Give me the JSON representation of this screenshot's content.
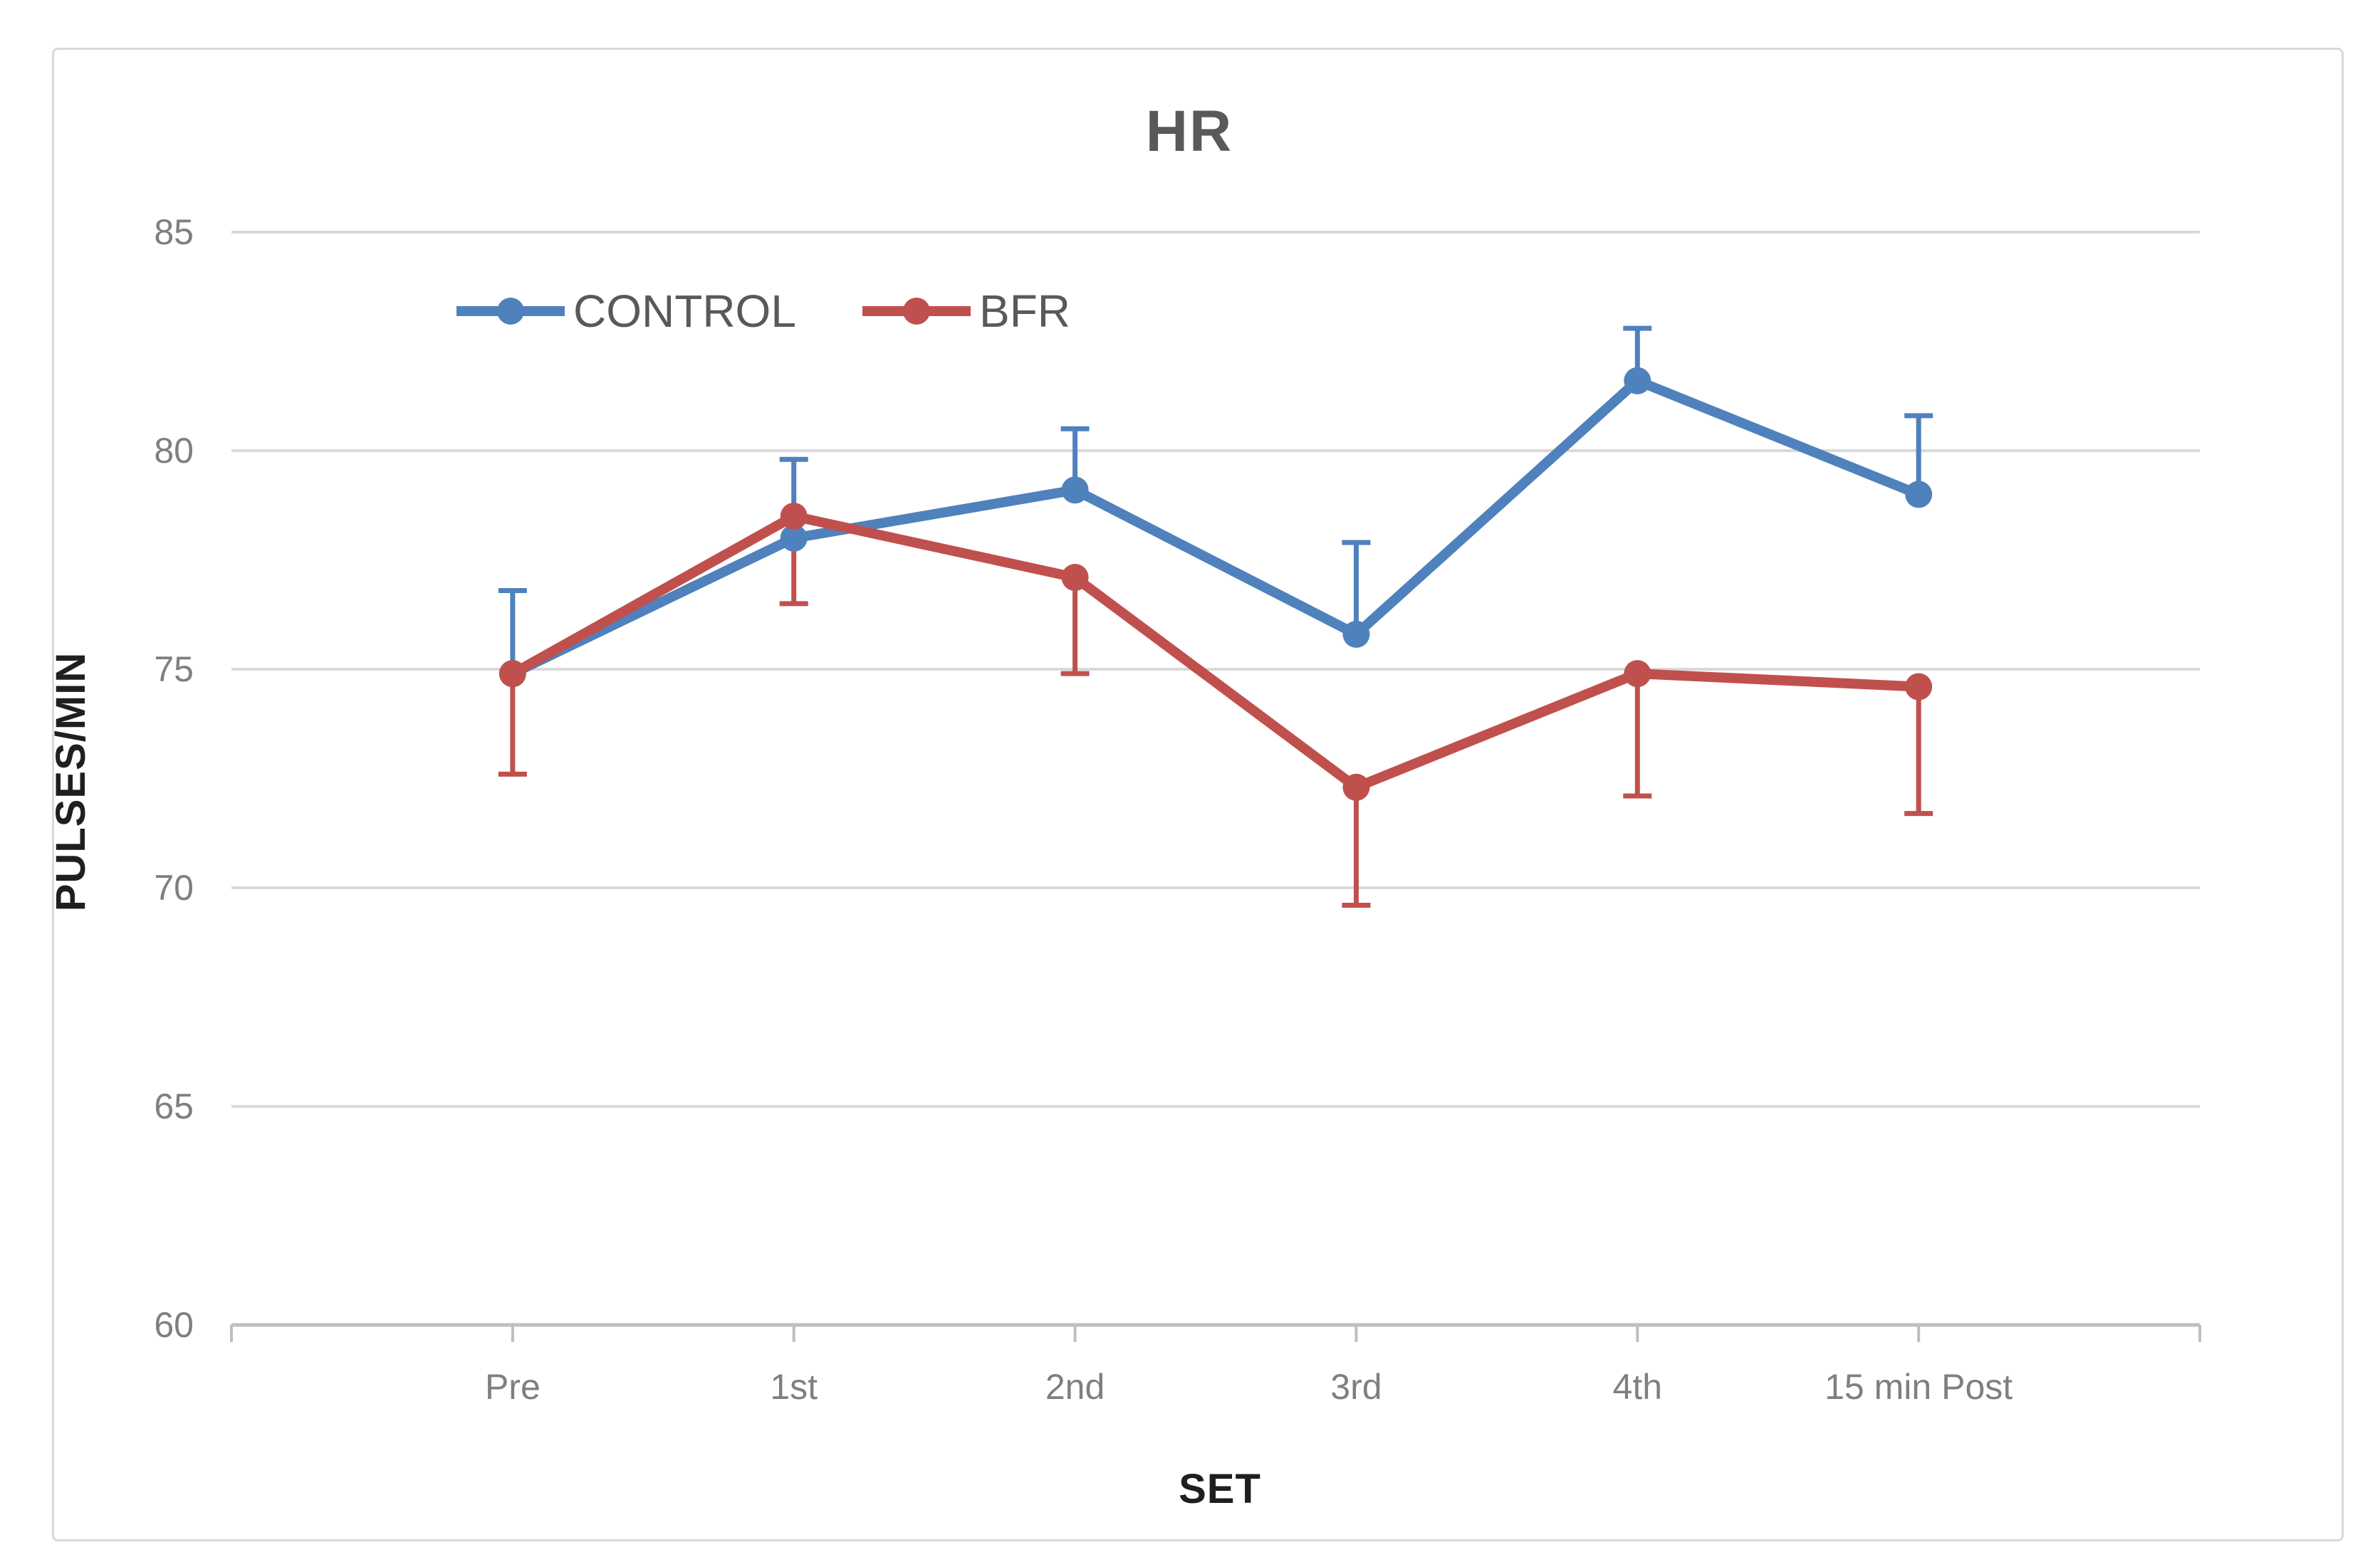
{
  "chart_data": {
    "type": "line",
    "title": "HR",
    "xlabel": "SET",
    "ylabel": "PULSES/MIN",
    "categories": [
      "Pre",
      "1st",
      "2nd",
      "3rd",
      "4th",
      "15 min Post"
    ],
    "ylim": [
      60,
      85
    ],
    "yticks": [
      85,
      80,
      75,
      70,
      65,
      60
    ],
    "grid": true,
    "legend_position": "inside-top-left",
    "series": [
      {
        "name": "CONTROL",
        "color": "#4f81bd",
        "values": [
          74.9,
          78.0,
          79.1,
          75.8,
          81.6,
          79.0
        ],
        "error_up": [
          1.9,
          1.8,
          1.4,
          2.1,
          1.2,
          1.8
        ],
        "error_down": [
          0,
          0,
          0,
          0,
          0,
          0
        ]
      },
      {
        "name": "BFR",
        "color": "#c0504d",
        "values": [
          74.9,
          78.5,
          77.1,
          72.3,
          74.9,
          74.6
        ],
        "error_up": [
          0,
          0,
          0,
          0,
          0,
          0
        ],
        "error_down": [
          2.3,
          2.0,
          2.2,
          2.7,
          2.8,
          2.9
        ]
      }
    ]
  },
  "colors": {
    "grid": "#d9d9d9",
    "axis": "#bfbfbf",
    "title_text": "#595959",
    "tick_text": "#7f7f7f",
    "axis_title_text": "#1f1f1f",
    "legend_text": "#595959",
    "background": "#ffffff",
    "border": "#d9d9d9"
  }
}
